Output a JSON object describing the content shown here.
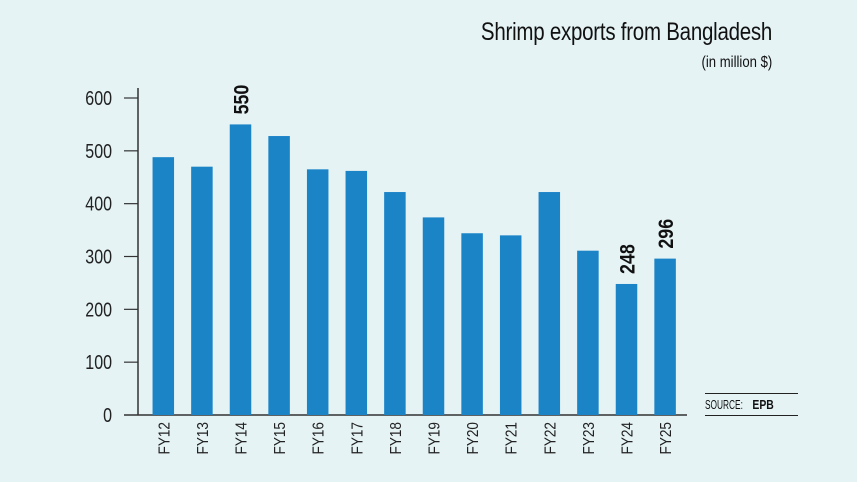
{
  "chart_data": {
    "type": "bar",
    "title": "Shrimp exports from Bangladesh",
    "subtitle": "(in million $)",
    "categories": [
      "FY12",
      "FY13",
      "FY14",
      "FY15",
      "FY16",
      "FY17",
      "FY18",
      "FY19",
      "FY20",
      "FY21",
      "FY22",
      "FY23",
      "FY24",
      "FY25"
    ],
    "values": [
      488,
      470,
      550,
      528,
      465,
      462,
      422,
      374,
      344,
      340,
      422,
      311,
      248,
      296
    ],
    "data_labels": {
      "FY14": "550",
      "FY24": "248",
      "FY25": "296"
    },
    "ylim": [
      0,
      600
    ],
    "yticks": [
      0,
      100,
      200,
      300,
      400,
      500,
      600
    ],
    "xlabel": "",
    "ylabel": "",
    "grid": false,
    "bar_color": "#1a84c7",
    "source_label": "SOURCE:",
    "source_value": "EPB"
  }
}
